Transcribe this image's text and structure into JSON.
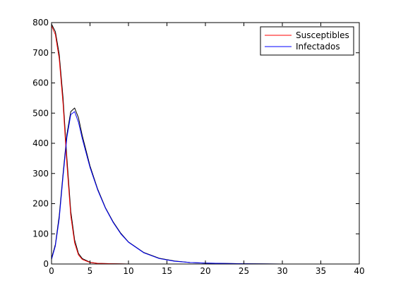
{
  "chart_data": {
    "type": "line",
    "title": "",
    "xlabel": "",
    "ylabel": "",
    "xlim": [
      0,
      40
    ],
    "ylim": [
      0,
      800
    ],
    "xticks": [
      0,
      5,
      10,
      15,
      20,
      25,
      30,
      35,
      40
    ],
    "yticks": [
      0,
      100,
      200,
      300,
      400,
      500,
      600,
      700,
      800
    ],
    "grid": false,
    "legend_position": "top-right",
    "series": [
      {
        "name": "Susceptibles",
        "color": "#ff0000",
        "x": [
          0,
          0.5,
          1,
          1.5,
          2,
          2.5,
          3,
          3.5,
          4,
          5,
          6,
          8,
          10,
          15,
          20,
          25,
          30,
          40
        ],
        "y": [
          790,
          760,
          680,
          530,
          330,
          160,
          70,
          30,
          15,
          5,
          2,
          1,
          0,
          0,
          0,
          0,
          0,
          0
        ]
      },
      {
        "name": "Infectados",
        "color": "#0000ff",
        "x": [
          0,
          0.5,
          1,
          1.5,
          2,
          2.5,
          3,
          3.5,
          4,
          5,
          6,
          7,
          8,
          9,
          10,
          12,
          14,
          16,
          18,
          20,
          22,
          25,
          30,
          35,
          40
        ],
        "y": [
          15,
          60,
          150,
          290,
          420,
          495,
          505,
          470,
          415,
          320,
          245,
          185,
          138,
          100,
          72,
          37,
          18,
          9,
          5,
          3,
          2,
          1,
          0,
          0,
          0
        ]
      },
      {
        "name": "",
        "color": "#000000",
        "x": [
          0,
          0.5,
          1,
          1.5,
          2,
          2.5,
          3,
          3.5,
          4,
          5,
          6,
          7,
          8,
          9,
          10,
          12,
          14,
          16,
          18,
          20,
          22,
          25,
          30,
          35,
          40
        ],
        "y": [
          18,
          65,
          160,
          300,
          430,
          505,
          517,
          485,
          425,
          325,
          248,
          187,
          140,
          102,
          73,
          38,
          19,
          10,
          5,
          3,
          2,
          1,
          0,
          0,
          0
        ]
      },
      {
        "name": "",
        "color": "#000000",
        "x": [
          0,
          0.5,
          1,
          1.5,
          2,
          2.5,
          3,
          3.5,
          4,
          5,
          6,
          8,
          10,
          15,
          20,
          40
        ],
        "y": [
          795,
          770,
          695,
          550,
          350,
          175,
          80,
          35,
          18,
          6,
          2,
          1,
          0,
          0,
          0,
          0
        ]
      }
    ]
  }
}
